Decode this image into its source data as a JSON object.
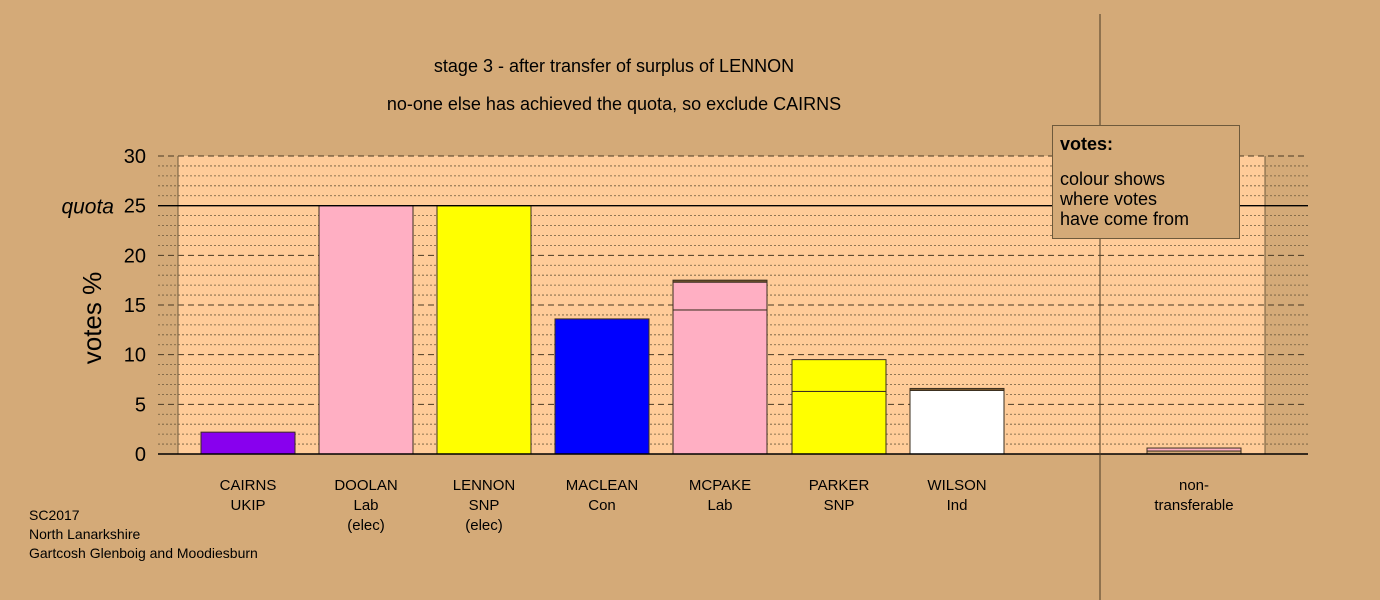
{
  "title_lines": [
    "stage 3 - after transfer of surplus of LENNON",
    "no-one else has achieved the quota, so exclude CAIRNS"
  ],
  "legend": {
    "title": "votes:",
    "lines": [
      "colour shows",
      "where votes",
      "have come from"
    ]
  },
  "footer": [
    "SC2017",
    "North Lanarkshire",
    "Gartcosh Glenboig and Moodiesburn"
  ],
  "colors": {
    "background": "#d4aa78",
    "plot_area": "#ffcc99",
    "ukip": "#8800ee",
    "lab": "#ffafc3",
    "snp": "#ffff00",
    "con": "#0000ff",
    "ind": "#ffffff",
    "transfer_lab": "#ffafc3",
    "transfer_snp": "#ffff00",
    "transfer_other": "#7a5a30"
  },
  "chart_data": {
    "type": "bar",
    "stacked": true,
    "ylabel": "votes %",
    "ylim": [
      0,
      30
    ],
    "yticks": [
      0,
      5,
      10,
      15,
      20,
      25,
      30
    ],
    "quota": 25,
    "quota_label": "quota",
    "grid": true,
    "legend_position": "top-right",
    "categories": [
      [
        "CAIRNS",
        "UKIP"
      ],
      [
        "DOOLAN",
        "Lab",
        "(elec)"
      ],
      [
        "LENNON",
        "SNP",
        "(elec)"
      ],
      [
        "MACLEAN",
        "Con"
      ],
      [
        "MCPAKE",
        "Lab"
      ],
      [
        "PARKER",
        "SNP"
      ],
      [
        "WILSON",
        "Ind"
      ],
      [
        "non-",
        "transferable"
      ]
    ],
    "bars": [
      {
        "segments": [
          {
            "value": 2.2,
            "color": "#8800ee"
          }
        ]
      },
      {
        "segments": [
          {
            "value": 25.0,
            "color": "#ffafc3"
          }
        ]
      },
      {
        "segments": [
          {
            "value": 25.0,
            "color": "#ffff00"
          }
        ]
      },
      {
        "segments": [
          {
            "value": 13.6,
            "color": "#0000ff"
          }
        ]
      },
      {
        "segments": [
          {
            "value": 14.5,
            "color": "#ffafc3"
          },
          {
            "value": 2.8,
            "color": "#ffafc3"
          },
          {
            "value": 0.2,
            "color": "#7a5a30"
          }
        ]
      },
      {
        "segments": [
          {
            "value": 6.3,
            "color": "#ffff00"
          },
          {
            "value": 3.2,
            "color": "#ffff00"
          }
        ]
      },
      {
        "segments": [
          {
            "value": 6.4,
            "color": "#ffffff"
          },
          {
            "value": 0.2,
            "color": "#7a5a30"
          }
        ]
      },
      {
        "segments": [
          {
            "value": 0.3,
            "color": "#d4aa78"
          },
          {
            "value": 0.3,
            "color": "#ffafc3"
          }
        ]
      }
    ]
  }
}
